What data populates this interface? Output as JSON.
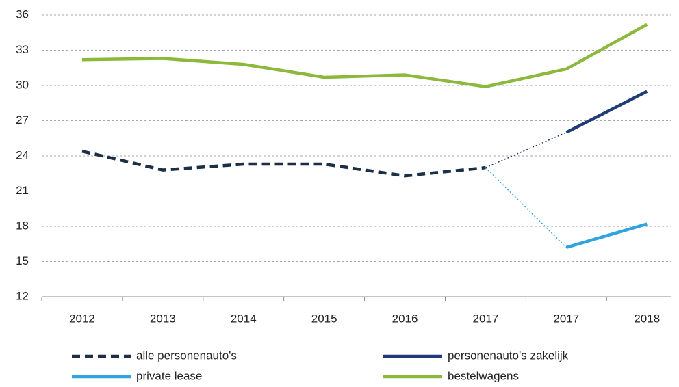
{
  "chart_data": {
    "type": "line",
    "categories": [
      "2012",
      "2013",
      "2014",
      "2015",
      "2016",
      "2017",
      "2017",
      "2018"
    ],
    "series": [
      {
        "name": "alle personenauto's",
        "color": "#1c2f47",
        "dash": true,
        "values": [
          24.4,
          22.8,
          23.3,
          23.3,
          22.3,
          23.0,
          null,
          null
        ]
      },
      {
        "name": "personenauto's zakelijk",
        "color": "#1f3c78",
        "values": [
          null,
          null,
          null,
          null,
          null,
          null,
          26.0,
          29.5
        ]
      },
      {
        "name": "private lease",
        "color": "#2fa4de",
        "values": [
          null,
          null,
          null,
          null,
          null,
          null,
          16.2,
          18.2
        ]
      },
      {
        "name": "bestelwagens",
        "color": "#8cb83c",
        "values": [
          32.2,
          32.3,
          31.8,
          30.7,
          30.9,
          29.9,
          31.4,
          35.2
        ]
      }
    ],
    "ylim": [
      12,
      36
    ],
    "yticks": [
      12,
      15,
      18,
      21,
      24,
      27,
      30,
      33,
      36
    ],
    "grid": true
  }
}
